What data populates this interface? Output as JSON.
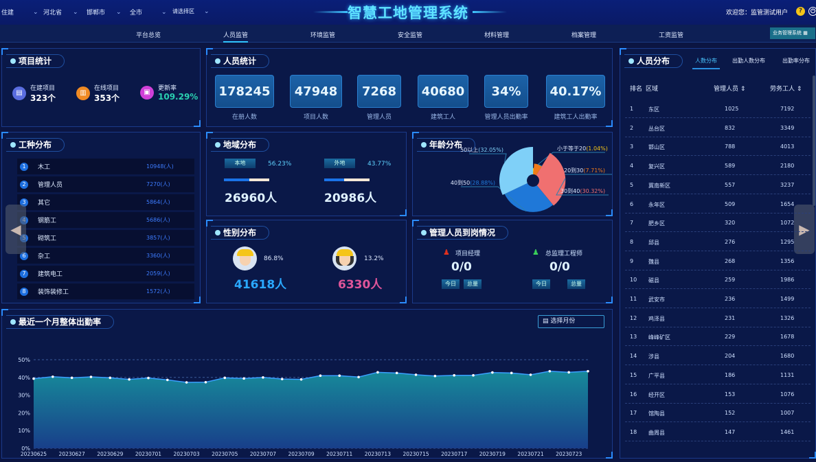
{
  "header": {
    "filters": [
      "住建",
      "河北省",
      "邯郸市",
      "全市",
      "请选择区"
    ],
    "title": "智慧工地管理系统",
    "welcome": "欢迎您：监管测试用户",
    "help_icon": "question-circle-icon",
    "power_icon": "power-icon"
  },
  "nav": {
    "items": [
      "平台总览",
      "人员监管",
      "环境监管",
      "安全监管",
      "材料管理",
      "档案管理",
      "工资监管"
    ],
    "active": "人员监管",
    "biz_button": "业务管理系统"
  },
  "project_stats": {
    "title": "项目统计",
    "items": [
      {
        "label": "在建项目",
        "value": "323个",
        "color": "#5a6de0"
      },
      {
        "label": "在线项目",
        "value": "353个",
        "color": "#f08a24"
      },
      {
        "label": "更新率",
        "value": "109.29%",
        "color": "#d040d8"
      }
    ]
  },
  "personnel_stats": {
    "title": "人员统计",
    "items": [
      {
        "value": "178245",
        "label": "在册人数"
      },
      {
        "value": "47948",
        "label": "项目人数"
      },
      {
        "value": "7268",
        "label": "管理人员"
      },
      {
        "value": "40680",
        "label": "建筑工人"
      },
      {
        "value": "34%",
        "label": "管理人员出勤率"
      },
      {
        "value": "40.17%",
        "label": "建筑工人出勤率"
      }
    ]
  },
  "worker_types": {
    "title": "工种分布",
    "items": [
      {
        "rank": "1",
        "name": "木工",
        "value": "10948(人)"
      },
      {
        "rank": "2",
        "name": "管理人员",
        "value": "7270(人)"
      },
      {
        "rank": "3",
        "name": "其它",
        "value": "5864(人)"
      },
      {
        "rank": "4",
        "name": "钢筋工",
        "value": "5686(人)"
      },
      {
        "rank": "5",
        "name": "砌筑工",
        "value": "3857(人)"
      },
      {
        "rank": "6",
        "name": "杂工",
        "value": "3360(人)"
      },
      {
        "rank": "7",
        "name": "建筑电工",
        "value": "2059(人)"
      },
      {
        "rank": "8",
        "name": "装饰装修工",
        "value": "1572(人)"
      }
    ]
  },
  "region": {
    "title": "地域分布",
    "local": {
      "tag": "本地",
      "pct": "56.23%",
      "fill": 0.56,
      "count": "26960人"
    },
    "outside": {
      "tag": "外地",
      "pct": "43.77%",
      "fill": 0.44,
      "count": "20986人"
    }
  },
  "gender": {
    "title": "性别分布",
    "male": {
      "pct": "86.8%",
      "count": "41618人"
    },
    "female": {
      "pct": "13.2%",
      "count": "6330人"
    }
  },
  "age": {
    "title": "年龄分布",
    "chart_data": {
      "type": "pie",
      "rose": true,
      "slices": [
        {
          "name": "小于等于20",
          "value": 1.04,
          "label": "小于等于20",
          "pct": "(1.04%)",
          "color": "#f5c518"
        },
        {
          "name": "20到30",
          "value": 7.71,
          "label": "20到30",
          "pct": "(7.71%)",
          "color": "#f07a1a"
        },
        {
          "name": "30到40",
          "value": 30.32,
          "label": "30到40",
          "pct": "(30.32%)",
          "color": "#f07070"
        },
        {
          "name": "40到50",
          "value": 28.88,
          "label": "40到50",
          "pct": "(28.88%)",
          "color": "#1f78d8"
        },
        {
          "name": "50以上",
          "value": 32.05,
          "label": "50以上",
          "pct": "(32.05%)",
          "color": "#7fd0f8"
        }
      ]
    }
  },
  "managers": {
    "title": "管理人员到岗情况",
    "items": [
      {
        "label": "项目经理",
        "value": "0/0",
        "today": "今日",
        "total": "总量",
        "icon": "red-person-icon"
      },
      {
        "label": "总监理工程师",
        "value": "0/0",
        "today": "今日",
        "total": "总量",
        "icon": "green-person-icon"
      }
    ]
  },
  "attendance": {
    "title": "最近一个月整体出勤率",
    "month_select": "选择月份",
    "chart_data": {
      "type": "area",
      "ylim": [
        0,
        50
      ],
      "yticks": [
        "0%",
        "10%",
        "20%",
        "30%",
        "40%",
        "50%"
      ],
      "x": [
        "20230625",
        "20230626",
        "20230627",
        "20230628",
        "20230629",
        "20230630",
        "20230701",
        "20230702",
        "20230703",
        "20230704",
        "20230705",
        "20230706",
        "20230707",
        "20230708",
        "20230709",
        "20230710",
        "20230711",
        "20230712",
        "20230713",
        "20230714",
        "20230715",
        "20230716",
        "20230717",
        "20230718",
        "20230719",
        "20230720",
        "20230721",
        "20230722",
        "20230723",
        "20230724"
      ],
      "xticks": [
        "20230625",
        "20230627",
        "20230629",
        "20230701",
        "20230703",
        "20230705",
        "20230707",
        "20230709",
        "20230711",
        "20230713",
        "20230715",
        "20230717",
        "20230719",
        "20230721",
        "20230723"
      ],
      "values": [
        39.3,
        40.4,
        39.8,
        40.3,
        39.8,
        38.9,
        39.7,
        38.6,
        37.2,
        37.3,
        39.8,
        39.4,
        40.0,
        39.1,
        38.9,
        41.0,
        41.0,
        40.2,
        42.9,
        42.5,
        41.5,
        40.8,
        41.2,
        41.2,
        42.8,
        42.5,
        41.5,
        43.5,
        42.9,
        43.5
      ],
      "grid": true
    }
  },
  "distribution": {
    "title": "人员分布",
    "tabs": [
      "人数分布",
      "出勤人数分布",
      "出勤率分布"
    ],
    "active_tab": "人数分布",
    "columns": [
      "排名",
      "区域",
      "管理人员 ⇕",
      "劳务工人 ⇕"
    ],
    "rows": [
      [
        "1",
        "东区",
        "1025",
        "7192"
      ],
      [
        "2",
        "丛台区",
        "832",
        "3349"
      ],
      [
        "3",
        "邯山区",
        "788",
        "4013"
      ],
      [
        "4",
        "复兴区",
        "589",
        "2180"
      ],
      [
        "5",
        "冀南新区",
        "557",
        "3237"
      ],
      [
        "6",
        "永年区",
        "509",
        "1654"
      ],
      [
        "7",
        "肥乡区",
        "320",
        "1072"
      ],
      [
        "8",
        "邱县",
        "276",
        "1295"
      ],
      [
        "9",
        "魏县",
        "268",
        "1356"
      ],
      [
        "10",
        "磁县",
        "259",
        "1986"
      ],
      [
        "11",
        "武安市",
        "236",
        "1499"
      ],
      [
        "12",
        "鸡泽县",
        "231",
        "1326"
      ],
      [
        "13",
        "峰峰矿区",
        "229",
        "1678"
      ],
      [
        "14",
        "涉县",
        "204",
        "1680"
      ],
      [
        "15",
        "广平县",
        "186",
        "1131"
      ],
      [
        "16",
        "经开区",
        "153",
        "1076"
      ],
      [
        "17",
        "馆陶县",
        "152",
        "1007"
      ],
      [
        "18",
        "曲周县",
        "147",
        "1461"
      ]
    ]
  }
}
